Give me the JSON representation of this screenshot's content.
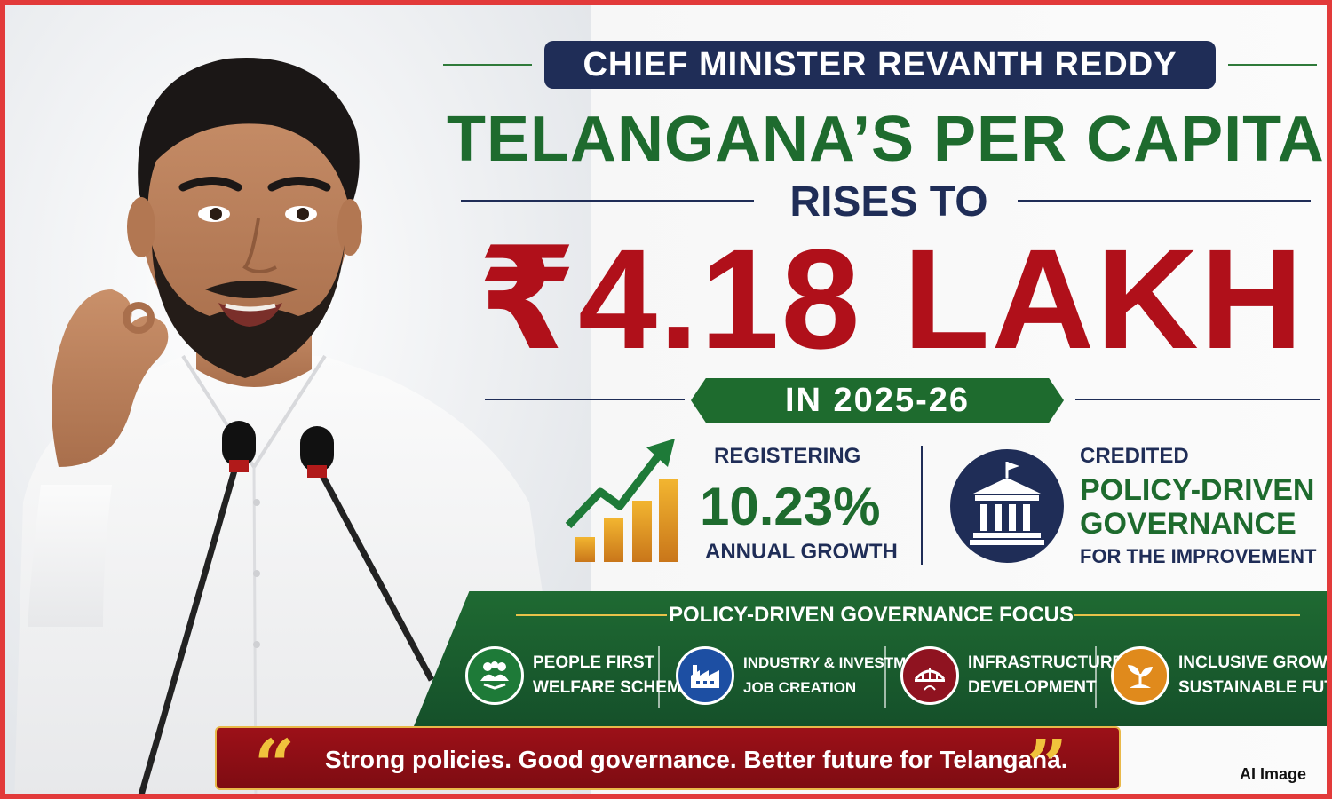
{
  "header": {
    "pill": "CHIEF MINISTER REVANTH REDDY",
    "headline": "TELANGANA’S PER CAPITA INCOME",
    "rises": "RISES TO",
    "amount": "₹4.18 LAKH",
    "year": "IN 2025-26"
  },
  "stats": {
    "growth_label_top": "REGISTERING",
    "growth_value": "10.23%",
    "growth_label_bottom": "ANNUAL GROWTH",
    "policy_top": "CREDITED",
    "policy_line1": "POLICY-DRIVEN",
    "policy_line2": "GOVERNANCE",
    "policy_bottom": "FOR THE IMPROVEMENT"
  },
  "focus": {
    "title": "POLICY-DRIVEN GOVERNANCE FOCUS",
    "items": [
      {
        "line1": "PEOPLE FIRST",
        "line2": "WELFARE SCHEMES",
        "icon": "people-handshake-icon",
        "color": "#1e7a38"
      },
      {
        "line1": "INDUSTRY & INVESTMENT",
        "line2": "JOB CREATION",
        "icon": "factory-icon",
        "color": "#1d4fa3"
      },
      {
        "line1": "INFRASTRUCTURE",
        "line2": "DEVELOPMENT",
        "icon": "bridge-icon",
        "color": "#8f1320"
      },
      {
        "line1": "INCLUSIVE GROWTH",
        "line2": "SUSTAINABLE FUTURE",
        "icon": "sprout-icon",
        "color": "#e08a1c"
      }
    ]
  },
  "quote": {
    "open": "“",
    "text": "Strong policies. Good governance. Better future for Telangana.",
    "close": "”"
  },
  "tag": "AI Image",
  "colors": {
    "navy": "#1f2d57",
    "green": "#1e6b2e",
    "red": "#b0101a",
    "gold": "#e8c24a",
    "border": "#e23a3a"
  }
}
